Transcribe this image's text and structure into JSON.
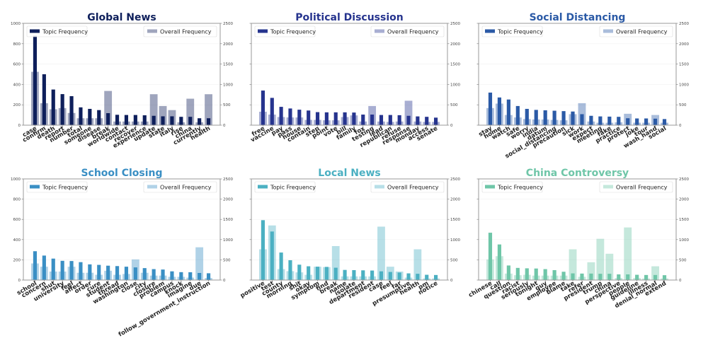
{
  "figure": {
    "left_axis_range": [
      0,
      1000
    ],
    "right_axis_range": [
      0,
      2500
    ],
    "left_ticks": [
      "0",
      "200",
      "400",
      "600",
      "800",
      "1000"
    ],
    "right_ticks": [
      "0",
      "500",
      "1000",
      "1500",
      "2000",
      "2500"
    ]
  },
  "chart_data": [
    {
      "type": "bar",
      "title": "Global News",
      "color": "#0e1f5b",
      "show_left_tick_labels": true,
      "legend": {
        "topic": "Topic Frequency",
        "overall": "Overall Frequency",
        "placement": "top"
      },
      "categories": [
        "case",
        "confirm",
        "death",
        "report",
        "number",
        "total",
        "someone",
        "disease",
        "break",
        "worldwide",
        "contact",
        "recover",
        "experience",
        "update",
        "state",
        "italy",
        "rise",
        "china",
        "currently",
        "health"
      ],
      "series": [
        {
          "name": "Topic Frequency",
          "axis": "left",
          "values": [
            880,
            500,
            350,
            305,
            285,
            175,
            160,
            148,
            118,
            102,
            100,
            100,
            97,
            92,
            87,
            87,
            82,
            82,
            68,
            68
          ]
        },
        {
          "name": "Overall Frequency",
          "axis": "right",
          "values": [
            1310,
            540,
            390,
            420,
            300,
            170,
            170,
            170,
            840,
            90,
            90,
            90,
            90,
            760,
            470,
            370,
            70,
            650,
            70,
            760
          ]
        }
      ],
      "ylim_left": [
        0,
        1000
      ],
      "ylim_right": [
        0,
        2500
      ]
    },
    {
      "type": "bar",
      "title": "Political Discussion",
      "color": "#26348e",
      "show_left_tick_labels": false,
      "legend": {
        "topic": "Topic Frequency",
        "overall": "Overall Frequency",
        "placement": "top"
      },
      "categories": [
        "free",
        "vaccine",
        "pay",
        "pass",
        "house",
        "contain",
        "step",
        "point",
        "vote",
        "bill",
        "family",
        "fox",
        "testing",
        "lead",
        "republican",
        "refuse",
        "response",
        "monday",
        "access",
        "senate"
      ],
      "series": [
        {
          "name": "Topic Frequency",
          "axis": "left",
          "values": [
            340,
            268,
            180,
            164,
            152,
            144,
            128,
            126,
            126,
            126,
            124,
            104,
            104,
            100,
            100,
            98,
            92,
            86,
            82,
            74
          ]
        },
        {
          "name": "Overall Frequency",
          "axis": "right",
          "values": [
            330,
            260,
            200,
            190,
            190,
            130,
            130,
            120,
            120,
            200,
            240,
            90,
            470,
            90,
            80,
            90,
            600,
            90,
            80,
            80
          ]
        }
      ],
      "ylim_left": [
        0,
        1000
      ],
      "ylim_right": [
        0,
        2500
      ]
    },
    {
      "type": "bar",
      "title": "Social Distancing",
      "color": "#2b5aa6",
      "show_left_tick_labels": false,
      "legend": {
        "topic": "Topic Frequency",
        "overall": "Overall Frequency",
        "placement": "top"
      },
      "categories": [
        "stay",
        "home",
        "watch",
        "safe",
        "worry",
        "india",
        "datum",
        "social_distancing",
        "precaution",
        "sick",
        "work",
        "expect",
        "meeting",
        "fake",
        "practice",
        "protect",
        "joke",
        "tour",
        "wash_hand",
        "social"
      ],
      "series": [
        {
          "name": "Topic Frequency",
          "axis": "left",
          "values": [
            320,
            272,
            252,
            188,
            160,
            150,
            146,
            142,
            138,
            134,
            108,
            92,
            86,
            84,
            82,
            68,
            66,
            66,
            64,
            60
          ]
        },
        {
          "name": "Overall Frequency",
          "axis": "right",
          "values": [
            420,
            530,
            250,
            190,
            150,
            140,
            140,
            130,
            120,
            270,
            540,
            90,
            60,
            60,
            70,
            280,
            60,
            60,
            250,
            60
          ]
        }
      ],
      "ylim_left": [
        0,
        1000
      ],
      "ylim_right": [
        0,
        2500
      ]
    },
    {
      "type": "bar",
      "title": "School Closing",
      "color": "#3a8fc4",
      "show_left_tick_labels": true,
      "legend": {
        "topic": "Topic Frequency",
        "overall": "Overall Frequency",
        "placement": "top"
      },
      "categories": [
        "school",
        "concern",
        "shut",
        "university",
        "feel",
        "affect",
        "order",
        "cure",
        "student",
        "thread",
        "washington",
        "close",
        "city",
        "closure",
        "problem",
        "campus",
        "knock",
        "imagine",
        "due",
        "follow_government_instruction"
      ],
      "series": [
        {
          "name": "Topic Frequency",
          "axis": "left",
          "values": [
            285,
            242,
            212,
            190,
            188,
            177,
            155,
            150,
            142,
            138,
            132,
            125,
            118,
            108,
            104,
            86,
            78,
            77,
            70,
            67
          ]
        },
        {
          "name": "Overall Frequency",
          "axis": "right",
          "values": [
            410,
            330,
            210,
            210,
            330,
            180,
            180,
            130,
            230,
            130,
            150,
            510,
            180,
            110,
            110,
            80,
            80,
            60,
            810,
            50
          ]
        }
      ],
      "ylim_left": [
        0,
        1000
      ],
      "ylim_right": [
        0,
        2500
      ]
    },
    {
      "type": "bar",
      "title": "Local News",
      "color": "#4bb0c2",
      "show_left_tick_labels": false,
      "legend": {
        "topic": "Topic Frequency",
        "overall": "Overall Frequency",
        "placement": "top"
      },
      "categories": [
        "positive",
        "test",
        "county",
        "morning",
        "shit",
        "okay",
        "symptom",
        "find",
        "break",
        "name",
        "isolate",
        "department",
        "resident",
        "case",
        "feel",
        "far",
        "presumptive",
        "health",
        "pm",
        "notice"
      ],
      "series": [
        {
          "name": "Topic Frequency",
          "axis": "left",
          "values": [
            592,
            480,
            272,
            196,
            152,
            136,
            132,
            130,
            122,
            100,
            98,
            96,
            94,
            86,
            80,
            74,
            66,
            62,
            52,
            50
          ]
        },
        {
          "name": "Overall Frequency",
          "axis": "right",
          "values": [
            760,
            1350,
            270,
            220,
            190,
            130,
            330,
            320,
            840,
            90,
            90,
            90,
            90,
            1320,
            330,
            210,
            60,
            760,
            40,
            40
          ]
        }
      ],
      "ylim_left": [
        0,
        1000
      ],
      "ylim_right": [
        0,
        2500
      ]
    },
    {
      "type": "bar",
      "title": "China Controversy",
      "color": "#6fc6a8",
      "show_left_tick_labels": false,
      "legend": {
        "topic": "Topic Frequency",
        "overall": "Overall Frequency",
        "placement": "top"
      },
      "categories": [
        "chinese",
        "call",
        "question",
        "racist",
        "seriously",
        "tonight",
        "guy",
        "employee",
        "blame",
        "take",
        "refer",
        "president",
        "trump",
        "china",
        "perspective",
        "people",
        "guideline",
        "illness",
        "denial_normal",
        "extend"
      ],
      "series": [
        {
          "name": "Topic Frequency",
          "axis": "left",
          "values": [
            468,
            352,
            144,
            120,
            116,
            114,
            108,
            98,
            82,
            66,
            64,
            64,
            62,
            62,
            56,
            56,
            52,
            50,
            50,
            48
          ]
        },
        {
          "name": "Overall Frequency",
          "axis": "right",
          "values": [
            510,
            590,
            160,
            120,
            130,
            110,
            110,
            110,
            110,
            760,
            80,
            440,
            1020,
            650,
            50,
            1300,
            50,
            40,
            340,
            40
          ]
        }
      ],
      "ylim_left": [
        0,
        1000
      ],
      "ylim_right": [
        0,
        2500
      ]
    }
  ]
}
